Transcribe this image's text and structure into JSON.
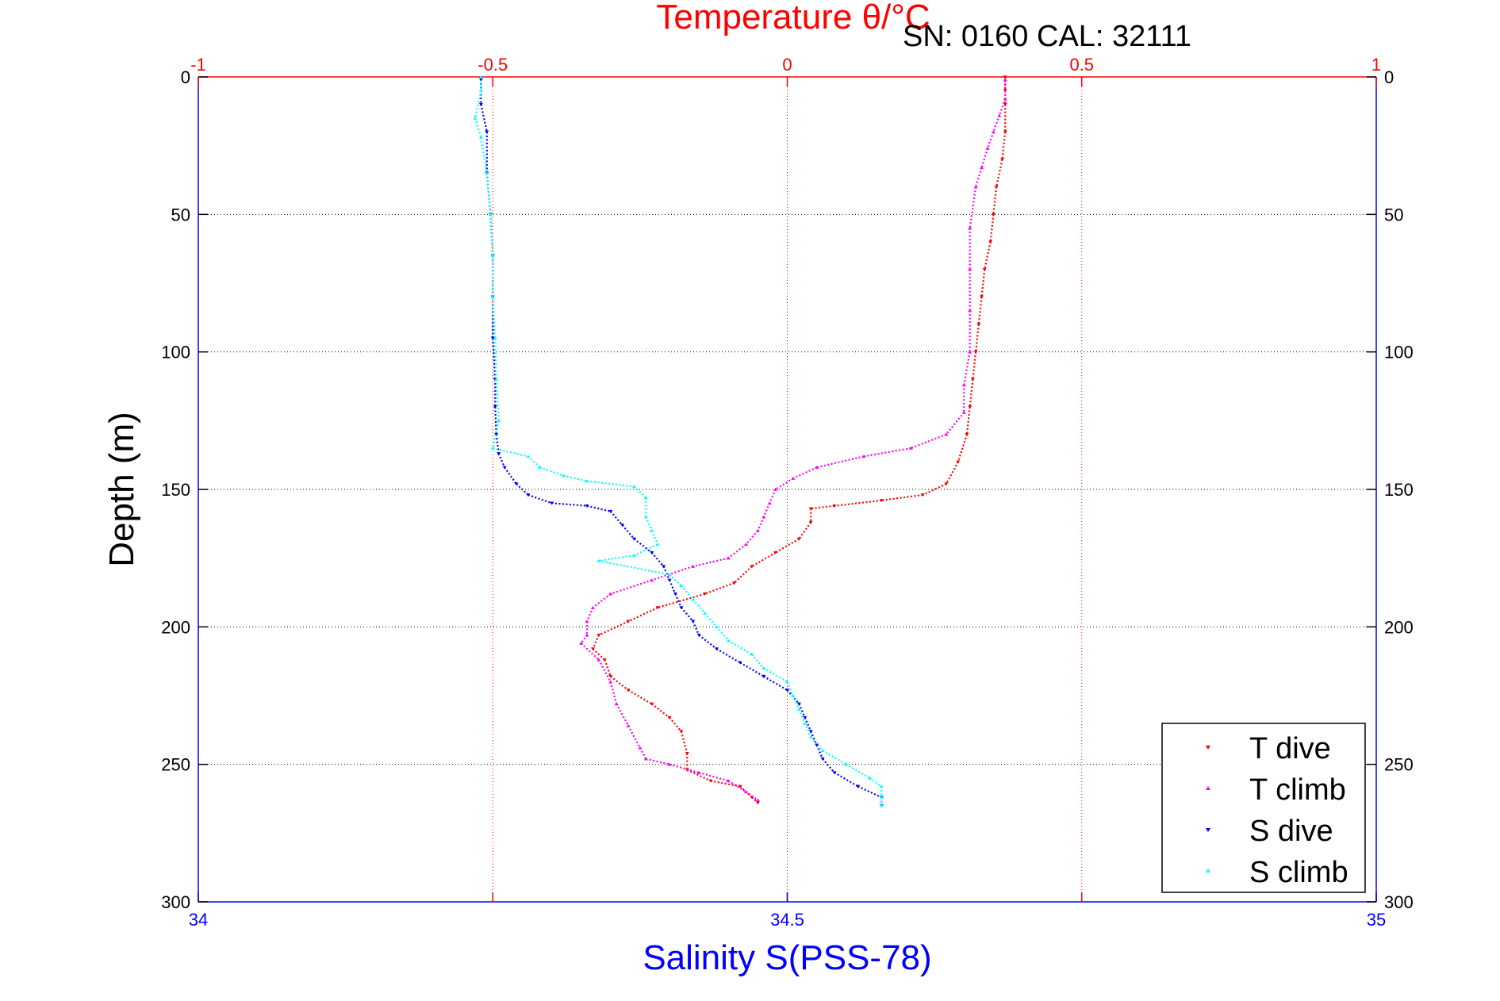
{
  "chart_data": {
    "type": "scatter",
    "title": "Temperature θ/°C",
    "annotation": "SN: 0160  CAL: 32111",
    "top_axis": {
      "label": "Temperature θ/°C",
      "range": [
        -1,
        1
      ],
      "ticks": [
        -1,
        -0.5,
        0,
        0.5,
        1
      ],
      "tick_labels": [
        "-1",
        "-0.5",
        "0",
        "0.5",
        "1"
      ],
      "color": "#ff0000"
    },
    "bottom_axis": {
      "label": "Salinity S(PSS-78)",
      "range": [
        34,
        35
      ],
      "ticks": [
        34,
        34.5,
        35
      ],
      "tick_labels": [
        "34",
        "34.5",
        "35"
      ],
      "color": "#0000ff"
    },
    "y_axis": {
      "label": "Depth (m)",
      "range": [
        0,
        300
      ],
      "reversed": true,
      "ticks": [
        0,
        50,
        100,
        150,
        200,
        250,
        300
      ],
      "tick_labels": [
        "0",
        "50",
        "100",
        "150",
        "200",
        "250",
        "300"
      ]
    },
    "grid": true,
    "legend": {
      "placement": "bottom-right",
      "entries": [
        "T dive",
        "T climb",
        "S dive",
        "S climb"
      ]
    },
    "series": [
      {
        "name": "T dive",
        "axis": "top",
        "color": "#ff0000",
        "points": [
          [
            0.37,
            0
          ],
          [
            0.37,
            5
          ],
          [
            0.37,
            10
          ],
          [
            0.37,
            20
          ],
          [
            0.365,
            30
          ],
          [
            0.355,
            40
          ],
          [
            0.35,
            50
          ],
          [
            0.345,
            60
          ],
          [
            0.335,
            70
          ],
          [
            0.33,
            80
          ],
          [
            0.325,
            90
          ],
          [
            0.32,
            100
          ],
          [
            0.315,
            110
          ],
          [
            0.31,
            120
          ],
          [
            0.305,
            130
          ],
          [
            0.29,
            140
          ],
          [
            0.27,
            148
          ],
          [
            0.23,
            152
          ],
          [
            0.16,
            154
          ],
          [
            0.08,
            156
          ],
          [
            0.04,
            157
          ],
          [
            0.04,
            162
          ],
          [
            0.02,
            168
          ],
          [
            -0.02,
            173
          ],
          [
            -0.06,
            178
          ],
          [
            -0.09,
            184
          ],
          [
            -0.14,
            188
          ],
          [
            -0.22,
            193
          ],
          [
            -0.27,
            198
          ],
          [
            -0.32,
            203
          ],
          [
            -0.33,
            208
          ],
          [
            -0.31,
            212
          ],
          [
            -0.3,
            218
          ],
          [
            -0.27,
            223
          ],
          [
            -0.23,
            228
          ],
          [
            -0.2,
            233
          ],
          [
            -0.18,
            238
          ],
          [
            -0.17,
            246
          ],
          [
            -0.17,
            252
          ],
          [
            -0.13,
            256
          ],
          [
            -0.08,
            258
          ],
          [
            -0.06,
            262
          ],
          [
            -0.05,
            264
          ]
        ]
      },
      {
        "name": "T climb",
        "axis": "top",
        "color": "#ff00ff",
        "points": [
          [
            0.37,
            1
          ],
          [
            0.37,
            8
          ],
          [
            0.36,
            14
          ],
          [
            0.35,
            20
          ],
          [
            0.34,
            26
          ],
          [
            0.33,
            33
          ],
          [
            0.32,
            40
          ],
          [
            0.31,
            55
          ],
          [
            0.31,
            70
          ],
          [
            0.31,
            85
          ],
          [
            0.31,
            100
          ],
          [
            0.3,
            112
          ],
          [
            0.3,
            122
          ],
          [
            0.27,
            130
          ],
          [
            0.21,
            135
          ],
          [
            0.13,
            138
          ],
          [
            0.05,
            142
          ],
          [
            0.01,
            146
          ],
          [
            -0.02,
            150
          ],
          [
            -0.03,
            155
          ],
          [
            -0.04,
            160
          ],
          [
            -0.05,
            165
          ],
          [
            -0.07,
            170
          ],
          [
            -0.1,
            175
          ],
          [
            -0.16,
            178
          ],
          [
            -0.23,
            183
          ],
          [
            -0.3,
            188
          ],
          [
            -0.33,
            193
          ],
          [
            -0.34,
            198
          ],
          [
            -0.34,
            203
          ],
          [
            -0.35,
            206
          ],
          [
            -0.32,
            212
          ],
          [
            -0.3,
            220
          ],
          [
            -0.29,
            228
          ],
          [
            -0.27,
            236
          ],
          [
            -0.25,
            244
          ],
          [
            -0.24,
            248
          ],
          [
            -0.2,
            250
          ],
          [
            -0.15,
            253
          ],
          [
            -0.1,
            256
          ],
          [
            -0.07,
            260
          ],
          [
            -0.05,
            263
          ]
        ]
      },
      {
        "name": "S dive",
        "axis": "bottom",
        "color": "#0000ff",
        "points": [
          [
            34.24,
            1
          ],
          [
            34.24,
            10
          ],
          [
            34.245,
            20
          ],
          [
            34.245,
            35
          ],
          [
            34.248,
            50
          ],
          [
            34.25,
            65
          ],
          [
            34.25,
            80
          ],
          [
            34.25,
            95
          ],
          [
            34.252,
            110
          ],
          [
            34.252,
            120
          ],
          [
            34.253,
            130
          ],
          [
            34.255,
            137
          ],
          [
            34.26,
            142
          ],
          [
            34.27,
            148
          ],
          [
            34.28,
            152
          ],
          [
            34.3,
            155
          ],
          [
            34.33,
            156
          ],
          [
            34.35,
            158
          ],
          [
            34.36,
            163
          ],
          [
            34.37,
            168
          ],
          [
            34.385,
            173
          ],
          [
            34.395,
            178
          ],
          [
            34.4,
            183
          ],
          [
            34.405,
            188
          ],
          [
            34.41,
            193
          ],
          [
            34.42,
            198
          ],
          [
            34.425,
            203
          ],
          [
            34.44,
            208
          ],
          [
            34.46,
            213
          ],
          [
            34.48,
            218
          ],
          [
            34.5,
            223
          ],
          [
            34.51,
            228
          ],
          [
            34.515,
            233
          ],
          [
            34.52,
            238
          ],
          [
            34.525,
            243
          ],
          [
            34.53,
            248
          ],
          [
            34.54,
            253
          ],
          [
            34.56,
            258
          ],
          [
            34.58,
            262
          ],
          [
            34.58,
            265
          ]
        ]
      },
      {
        "name": "S climb",
        "axis": "bottom",
        "color": "#00ffff",
        "points": [
          [
            34.24,
            0
          ],
          [
            34.24,
            5
          ],
          [
            34.235,
            15
          ],
          [
            34.24,
            22
          ],
          [
            34.245,
            35
          ],
          [
            34.248,
            50
          ],
          [
            34.25,
            65
          ],
          [
            34.25,
            80
          ],
          [
            34.252,
            95
          ],
          [
            34.253,
            110
          ],
          [
            34.255,
            125
          ],
          [
            34.25,
            135
          ],
          [
            34.28,
            138
          ],
          [
            34.29,
            142
          ],
          [
            34.31,
            145
          ],
          [
            34.33,
            147
          ],
          [
            34.37,
            149
          ],
          [
            34.38,
            153
          ],
          [
            34.38,
            160
          ],
          [
            34.385,
            165
          ],
          [
            34.39,
            170
          ],
          [
            34.37,
            174
          ],
          [
            34.34,
            176
          ],
          [
            34.4,
            181
          ],
          [
            34.41,
            185
          ],
          [
            34.42,
            190
          ],
          [
            34.43,
            195
          ],
          [
            34.44,
            200
          ],
          [
            34.45,
            205
          ],
          [
            34.47,
            210
          ],
          [
            34.48,
            215
          ],
          [
            34.5,
            220
          ],
          [
            34.505,
            225
          ],
          [
            34.51,
            230
          ],
          [
            34.515,
            235
          ],
          [
            34.52,
            240
          ],
          [
            34.53,
            245
          ],
          [
            34.55,
            250
          ],
          [
            34.57,
            255
          ],
          [
            34.58,
            258
          ],
          [
            34.58,
            262
          ],
          [
            34.58,
            265
          ]
        ]
      }
    ]
  }
}
